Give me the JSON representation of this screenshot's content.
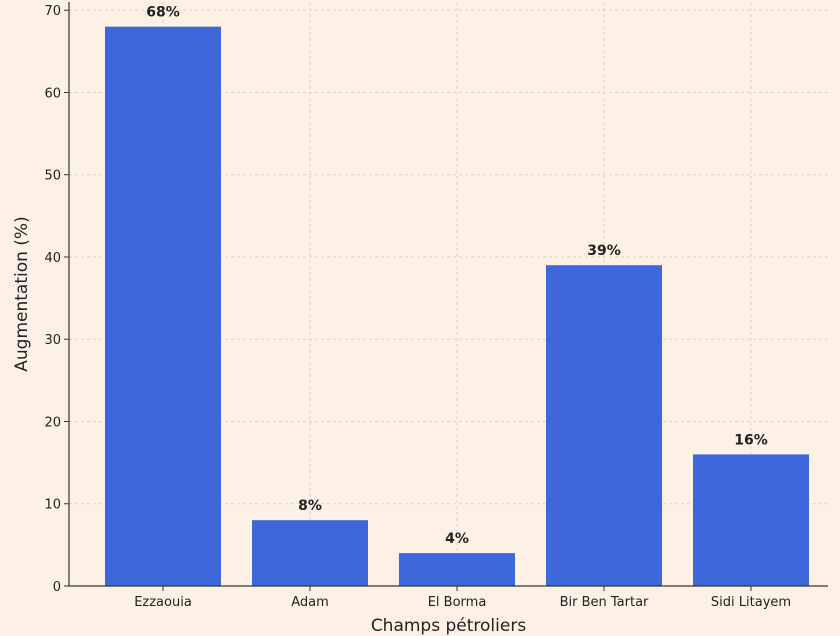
{
  "chart_data": {
    "type": "bar",
    "title": "",
    "categories": [
      "Ezzaouia",
      "Adam",
      "El Borma",
      "Bir Ben Tartar",
      "Sidi Litayem"
    ],
    "values": [
      68,
      8,
      4,
      39,
      16
    ],
    "data_labels": [
      "68%",
      "8%",
      "4%",
      "39%",
      "16%"
    ],
    "xlabel": "Champs pétroliers",
    "ylabel": "Augmentation (%)",
    "ylim": [
      0,
      71
    ],
    "yticks": [
      0,
      10,
      20,
      30,
      40,
      50,
      60,
      70
    ],
    "grid": true,
    "legend": "none",
    "colors": {
      "bar": "#3f67dc",
      "background": "#fdf1e6",
      "grid": "#d8d2cb"
    }
  }
}
